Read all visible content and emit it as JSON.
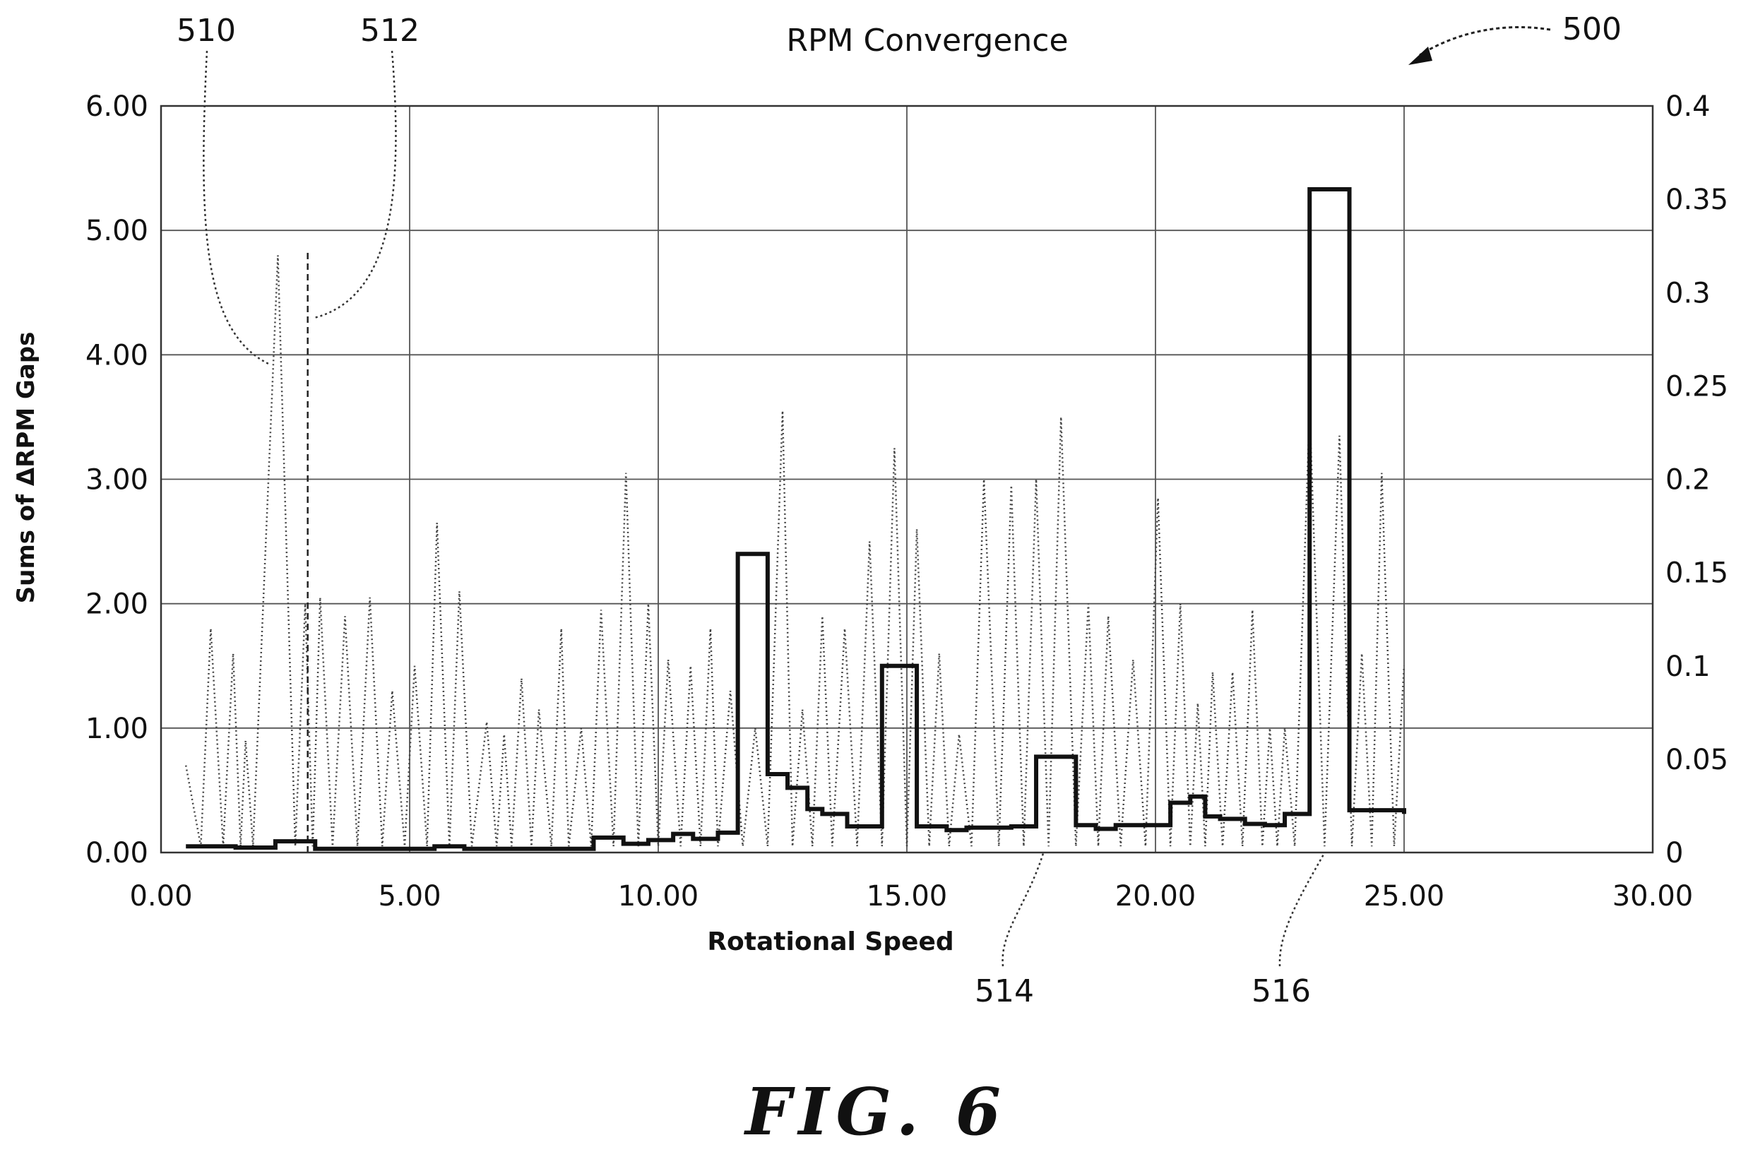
{
  "figure_label": "FIG. 6",
  "reference_numerals": {
    "r500": "500",
    "r510": "510",
    "r512": "512",
    "r514": "514",
    "r516": "516"
  },
  "chart_data": {
    "type": "line",
    "title": "RPM Convergence",
    "xlabel": "Rotational Speed",
    "ylabel_left": "Sums of ΔRPM Gaps",
    "ylabel_right": "",
    "xlim": [
      0,
      30
    ],
    "ylim_left": [
      0,
      6
    ],
    "ylim_right": [
      0,
      0.4
    ],
    "grid": true,
    "x_ticks": [
      "0.00",
      "5.00",
      "10.00",
      "15.00",
      "20.00",
      "25.00",
      "30.00"
    ],
    "y_left_ticks": [
      "0.00",
      "1.00",
      "2.00",
      "3.00",
      "4.00",
      "5.00",
      "6.00"
    ],
    "y_right_ticks": [
      "0",
      "0.05",
      "0.1",
      "0.15",
      "0.2",
      "0.25",
      "0.3",
      "0.35",
      "0.4"
    ],
    "series": [
      {
        "style": "solid-step",
        "axis": "left",
        "x": [
          0.5,
          1.5,
          2.3,
          3.1,
          5.5,
          6.1,
          8.7,
          9.3,
          9.8,
          10.3,
          10.7,
          11.2,
          11.6,
          12.2,
          12.6,
          13.0,
          13.3,
          13.8,
          14.5,
          15.2,
          15.8,
          16.2,
          17.1,
          17.6,
          18.4,
          18.8,
          19.2,
          20.3,
          20.7,
          21.0,
          21.3,
          21.8,
          22.2,
          22.6,
          23.1,
          23.9,
          25.0
        ],
        "y": [
          0.05,
          0.04,
          0.09,
          0.03,
          0.05,
          0.03,
          0.12,
          0.07,
          0.1,
          0.15,
          0.11,
          0.16,
          2.4,
          0.63,
          0.52,
          0.35,
          0.31,
          0.21,
          1.5,
          0.21,
          0.18,
          0.2,
          0.21,
          0.77,
          0.22,
          0.19,
          0.22,
          0.4,
          0.45,
          0.29,
          0.27,
          0.23,
          0.22,
          0.31,
          5.33,
          0.34,
          0.31
        ]
      },
      {
        "style": "dotted",
        "axis": "left",
        "x": [
          0.5,
          0.8,
          1.0,
          1.25,
          1.45,
          1.6,
          1.7,
          1.85,
          2.35,
          2.7,
          2.9,
          3.05,
          3.2,
          3.45,
          3.7,
          3.95,
          4.2,
          4.45,
          4.65,
          4.9,
          5.1,
          5.35,
          5.55,
          5.8,
          6.0,
          6.25,
          6.55,
          6.75,
          6.9,
          7.05,
          7.25,
          7.45,
          7.6,
          7.85,
          8.05,
          8.2,
          8.45,
          8.65,
          8.85,
          9.1,
          9.35,
          9.6,
          9.8,
          10.0,
          10.2,
          10.45,
          10.65,
          10.85,
          11.05,
          11.2,
          11.45,
          11.7,
          11.95,
          12.2,
          12.5,
          12.7,
          12.9,
          13.1,
          13.3,
          13.5,
          13.75,
          14.0,
          14.25,
          14.5,
          14.75,
          15.0,
          15.2,
          15.45,
          15.65,
          15.85,
          16.05,
          16.3,
          16.55,
          16.85,
          17.1,
          17.35,
          17.6,
          17.85,
          18.1,
          18.4,
          18.65,
          18.85,
          19.05,
          19.3,
          19.55,
          19.8,
          20.05,
          20.3,
          20.5,
          20.7,
          20.85,
          21.0,
          21.15,
          21.35,
          21.55,
          21.75,
          21.95,
          22.15,
          22.3,
          22.45,
          22.6,
          22.8,
          23.1,
          23.4,
          23.7,
          23.95,
          24.15,
          24.35,
          24.55,
          24.8,
          25.0
        ],
        "y": [
          0.7,
          0.05,
          1.8,
          0.05,
          1.6,
          0.05,
          0.9,
          0.05,
          4.8,
          0.05,
          2.0,
          0.05,
          2.05,
          0.05,
          1.9,
          0.05,
          2.05,
          0.05,
          1.3,
          0.05,
          1.5,
          0.05,
          2.65,
          0.05,
          2.1,
          0.05,
          1.05,
          0.05,
          0.95,
          0.05,
          1.4,
          0.05,
          1.15,
          0.05,
          1.8,
          0.05,
          1.0,
          0.05,
          1.95,
          0.05,
          3.05,
          0.05,
          2.0,
          0.05,
          1.55,
          0.05,
          1.5,
          0.05,
          1.8,
          0.05,
          1.3,
          0.05,
          1.0,
          0.05,
          3.55,
          0.05,
          1.15,
          0.05,
          1.9,
          0.05,
          1.8,
          0.05,
          2.5,
          0.05,
          3.25,
          0.05,
          2.6,
          0.05,
          1.6,
          0.05,
          0.95,
          0.05,
          3.0,
          0.05,
          2.95,
          0.05,
          3.0,
          0.05,
          3.5,
          0.05,
          2.0,
          0.05,
          1.9,
          0.05,
          1.55,
          0.05,
          2.85,
          0.05,
          2.0,
          0.05,
          1.2,
          0.05,
          1.45,
          0.05,
          1.45,
          0.05,
          1.95,
          0.05,
          1.0,
          0.05,
          1.0,
          0.05,
          3.55,
          0.05,
          3.35,
          0.05,
          1.6,
          0.05,
          3.05,
          0.05,
          1.5
        ]
      },
      {
        "style": "dashed",
        "axis": "left",
        "x": [
          2.95,
          2.95
        ],
        "y": [
          0.0,
          4.85
        ]
      }
    ]
  }
}
